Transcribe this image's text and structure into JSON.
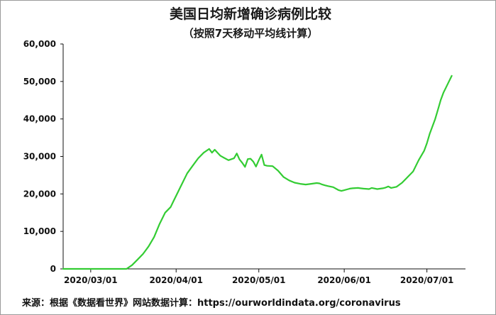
{
  "title": "美国日均新增确诊病例比较",
  "subtitle": "（按照7天移动平均线计算）",
  "source": "来源：根据《数据看世界》网站数据计算：https://ourworldindata.org/coronavirus",
  "colors": {
    "line": "#33cc33",
    "axis": "#111111",
    "frame": "#9a9a9a"
  },
  "chart_data": {
    "type": "line",
    "title": "美国日均新增确诊病例比较",
    "subtitle": "（按照7天移动平均线计算）",
    "xlabel": "",
    "ylabel": "",
    "x_start": "2020-02-20",
    "x_end": "2020-07-15",
    "xticks": [
      {
        "date": "2020-03-01",
        "label": "2020/03/01"
      },
      {
        "date": "2020-04-01",
        "label": "2020/04/01"
      },
      {
        "date": "2020-05-01",
        "label": "2020/05/01"
      },
      {
        "date": "2020-06-01",
        "label": "2020/06/01"
      },
      {
        "date": "2020-07-01",
        "label": "2020/07/01"
      }
    ],
    "ylim": [
      0,
      60000
    ],
    "yticks": [
      0,
      10000,
      20000,
      30000,
      40000,
      50000,
      60000
    ],
    "ytick_labels": [
      "0",
      "10,000",
      "20,000",
      "30,000",
      "40,000",
      "50,000",
      "60,000"
    ],
    "grid": false,
    "legend": "none",
    "series": [
      {
        "x": [
          "2020-02-20",
          "2020-02-24",
          "2020-02-28",
          "2020-03-02",
          "2020-03-06",
          "2020-03-10",
          "2020-03-14",
          "2020-03-16",
          "2020-03-18",
          "2020-03-20",
          "2020-03-21",
          "2020-03-22",
          "2020-03-24",
          "2020-03-26",
          "2020-03-28",
          "2020-03-30",
          "2020-03-31",
          "2020-04-01",
          "2020-04-03",
          "2020-04-05",
          "2020-04-07",
          "2020-04-09",
          "2020-04-11",
          "2020-04-13",
          "2020-04-14",
          "2020-04-15",
          "2020-04-16",
          "2020-04-17",
          "2020-04-18",
          "2020-04-20",
          "2020-04-22",
          "2020-04-23",
          "2020-04-24",
          "2020-04-25",
          "2020-04-26",
          "2020-04-27",
          "2020-04-28",
          "2020-04-29",
          "2020-04-30",
          "2020-05-01",
          "2020-05-02",
          "2020-05-03",
          "2020-05-04",
          "2020-05-06",
          "2020-05-08",
          "2020-05-10",
          "2020-05-12",
          "2020-05-14",
          "2020-05-16",
          "2020-05-18",
          "2020-05-20",
          "2020-05-22",
          "2020-05-23",
          "2020-05-24",
          "2020-05-25",
          "2020-05-26",
          "2020-05-28",
          "2020-05-30",
          "2020-05-31",
          "2020-06-01",
          "2020-06-02",
          "2020-06-03",
          "2020-06-04",
          "2020-06-06",
          "2020-06-08",
          "2020-06-10",
          "2020-06-11",
          "2020-06-13",
          "2020-06-15",
          "2020-06-16",
          "2020-06-17",
          "2020-06-18",
          "2020-06-20",
          "2020-06-22",
          "2020-06-24",
          "2020-06-26",
          "2020-06-27",
          "2020-06-28",
          "2020-06-30",
          "2020-07-01",
          "2020-07-02",
          "2020-07-03",
          "2020-07-04",
          "2020-07-05",
          "2020-07-06",
          "2020-07-07",
          "2020-07-08",
          "2020-07-09",
          "2020-07-10"
        ],
        "y": [
          0,
          0,
          0,
          0,
          0,
          0,
          0,
          1000,
          2500,
          4000,
          5000,
          6000,
          8500,
          12000,
          15000,
          16500,
          18000,
          19500,
          22500,
          25500,
          27500,
          29500,
          31000,
          32000,
          31000,
          31800,
          31000,
          30200,
          29800,
          29000,
          29500,
          30800,
          29200,
          28300,
          27200,
          29300,
          29400,
          28600,
          27300,
          29000,
          30500,
          27700,
          27500,
          27400,
          26200,
          24500,
          23600,
          23000,
          22700,
          22500,
          22700,
          22900,
          22800,
          22500,
          22300,
          22100,
          21800,
          21000,
          20800,
          21000,
          21200,
          21400,
          21500,
          21600,
          21400,
          21300,
          21600,
          21300,
          21500,
          21700,
          22000,
          21600,
          21900,
          23000,
          24500,
          26000,
          27500,
          29000,
          31500,
          33500,
          36000,
          38000,
          40000,
          42500,
          45000,
          47000,
          48500,
          50000,
          51500
        ]
      }
    ]
  }
}
